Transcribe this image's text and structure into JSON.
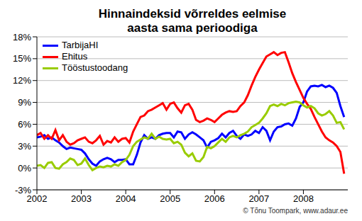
{
  "chart_data": {
    "type": "line",
    "title": "Hinnaindeksid võrreldes eelmise\naasta sama perioodiga",
    "annotation": "© Tõnu Toompark, www.adaur.ee",
    "x": [
      2002,
      2002.083,
      2002.167,
      2002.25,
      2002.333,
      2002.417,
      2002.5,
      2002.583,
      2002.667,
      2002.75,
      2002.833,
      2002.917,
      2003,
      2003.083,
      2003.167,
      2003.25,
      2003.333,
      2003.417,
      2003.5,
      2003.583,
      2003.667,
      2003.75,
      2003.833,
      2003.917,
      2004,
      2004.083,
      2004.167,
      2004.25,
      2004.333,
      2004.417,
      2004.5,
      2004.583,
      2004.667,
      2004.75,
      2004.833,
      2004.917,
      2005,
      2005.083,
      2005.167,
      2005.25,
      2005.333,
      2005.417,
      2005.5,
      2005.583,
      2005.667,
      2005.75,
      2005.833,
      2005.917,
      2006,
      2006.083,
      2006.167,
      2006.25,
      2006.333,
      2006.417,
      2006.5,
      2006.583,
      2006.667,
      2006.75,
      2006.833,
      2006.917,
      2007,
      2007.083,
      2007.167,
      2007.25,
      2007.333,
      2007.417,
      2007.5,
      2007.583,
      2007.667,
      2007.75,
      2007.833,
      2007.917,
      2008,
      2008.083,
      2008.167,
      2008.25,
      2008.333,
      2008.417,
      2008.5,
      2008.583,
      2008.667,
      2008.75,
      2008.833,
      2008.917
    ],
    "series": [
      {
        "name": "TarbijaHI",
        "color": "#0000ff",
        "values": [
          4.2,
          4.3,
          4.5,
          4.0,
          4.2,
          3.8,
          3.5,
          3.0,
          2.6,
          2.8,
          2.7,
          2.6,
          2.5,
          2.0,
          1.2,
          0.6,
          0.3,
          0.9,
          1.2,
          1.4,
          1.2,
          0.8,
          1.1,
          1.1,
          1.2,
          0.5,
          0.5,
          1.8,
          3.5,
          4.5,
          4.0,
          4.2,
          4.0,
          4.5,
          4.7,
          4.8,
          4.8,
          4.2,
          5.0,
          4.9,
          4.0,
          4.6,
          4.9,
          4.6,
          4.2,
          3.8,
          2.8,
          3.6,
          3.8,
          4.1,
          4.7,
          4.2,
          4.8,
          5.1,
          4.4,
          4.0,
          4.6,
          4.4,
          4.6,
          5.1,
          4.8,
          5.6,
          5.1,
          3.8,
          5.0,
          5.6,
          5.7,
          6.0,
          6.1,
          5.8,
          6.8,
          8.4,
          9.0,
          10.5,
          11.2,
          11.3,
          11.2,
          11.4,
          11.1,
          11.3,
          11.0,
          10.3,
          8.5,
          7.0
        ]
      },
      {
        "name": "Ehitus",
        "color": "#ff0000",
        "values": [
          4.5,
          4.8,
          4.0,
          4.5,
          4.0,
          5.2,
          3.8,
          4.5,
          3.6,
          3.2,
          3.4,
          3.8,
          4.0,
          4.2,
          3.6,
          3.4,
          3.8,
          4.4,
          3.2,
          3.7,
          3.5,
          4.2,
          3.6,
          4.0,
          4.1,
          3.5,
          5.0,
          6.0,
          7.0,
          7.2,
          7.8,
          8.0,
          8.3,
          8.6,
          8.9,
          8.0,
          8.8,
          9.0,
          8.2,
          7.6,
          8.6,
          8.8,
          8.0,
          6.6,
          6.3,
          6.5,
          6.8,
          6.6,
          6.3,
          6.8,
          7.3,
          7.6,
          7.8,
          7.7,
          7.8,
          8.5,
          9.0,
          10.0,
          11.3,
          12.5,
          13.5,
          14.4,
          15.3,
          15.6,
          15.9,
          15.5,
          15.8,
          15.9,
          14.5,
          13.0,
          11.8,
          10.7,
          9.6,
          8.8,
          8.1,
          7.0,
          6.0,
          5.0,
          4.2,
          3.8,
          3.5,
          3.0,
          2.2,
          -0.8
        ]
      },
      {
        "name": "Tööstustoodang",
        "color": "#99cc00",
        "values": [
          0.3,
          0.4,
          0.0,
          0.7,
          0.8,
          0.0,
          -0.1,
          0.5,
          0.8,
          1.3,
          1.1,
          0.4,
          0.6,
          1.3,
          0.4,
          -0.3,
          0.0,
          0.2,
          0.1,
          0.3,
          0.2,
          0.5,
          0.3,
          0.8,
          1.1,
          1.8,
          3.0,
          3.6,
          3.9,
          4.2,
          4.0,
          4.7,
          4.0,
          4.3,
          4.0,
          3.9,
          4.0,
          3.4,
          3.6,
          3.2,
          2.1,
          1.6,
          2.0,
          1.0,
          0.9,
          1.5,
          2.9,
          2.7,
          3.0,
          3.5,
          4.0,
          3.6,
          4.2,
          4.4,
          4.2,
          4.5,
          4.7,
          5.0,
          5.6,
          5.9,
          6.2,
          6.8,
          7.5,
          8.5,
          8.7,
          8.5,
          8.8,
          8.6,
          8.9,
          9.0,
          9.1,
          9.0,
          8.6,
          8.3,
          8.5,
          8.2,
          7.5,
          7.2,
          7.4,
          7.8,
          7.2,
          6.2,
          6.3,
          5.3
        ]
      }
    ],
    "xlim": [
      2002,
      2009
    ],
    "xticks": [
      2002,
      2003,
      2004,
      2005,
      2006,
      2007,
      2008
    ],
    "ylim": [
      -3,
      18
    ],
    "yticks": [
      {
        "value": -3,
        "label": "-3%"
      },
      {
        "value": 0,
        "label": "0%"
      },
      {
        "value": 3,
        "label": "3%"
      },
      {
        "value": 6,
        "label": "6%"
      },
      {
        "value": 9,
        "label": "9%"
      },
      {
        "value": 12,
        "label": "12%"
      },
      {
        "value": 15,
        "label": "15%"
      },
      {
        "value": 18,
        "label": "18%"
      }
    ],
    "grid": true,
    "legend": "top left"
  }
}
